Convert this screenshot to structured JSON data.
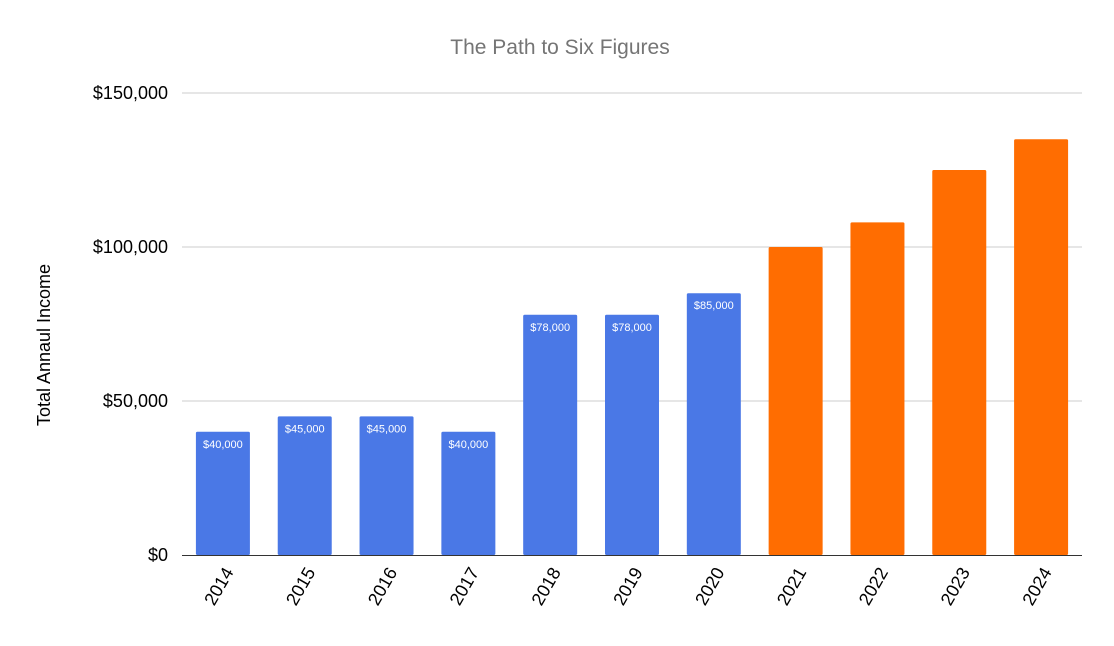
{
  "chart_data": {
    "type": "bar",
    "title": "The Path to Six Figures",
    "xlabel": "",
    "ylabel": "Total Annaul Income",
    "ylim": [
      0,
      150000
    ],
    "yticks": [
      {
        "value": 0,
        "label": "$0"
      },
      {
        "value": 50000,
        "label": "$50,000"
      },
      {
        "value": 100000,
        "label": "$100,000"
      },
      {
        "value": 150000,
        "label": "$150,000"
      }
    ],
    "grid": true,
    "legend": "none",
    "categories": [
      "2014",
      "2015",
      "2016",
      "2017",
      "2018",
      "2019",
      "2020",
      "2021",
      "2022",
      "2023",
      "2024"
    ],
    "values": [
      40000,
      45000,
      45000,
      40000,
      78000,
      78000,
      85000,
      100000,
      108000,
      125000,
      135000
    ],
    "data_labels": [
      "$40,000",
      "$45,000",
      "$45,000",
      "$40,000",
      "$78,000",
      "$78,000",
      "$85,000",
      "",
      "",
      "",
      ""
    ],
    "colors": {
      "historical": "#4a78e6",
      "projected": "#ff6d01",
      "grid": "#cccccc",
      "axis": "#333333"
    },
    "bar_color_groups": [
      "historical",
      "historical",
      "historical",
      "historical",
      "historical",
      "historical",
      "historical",
      "projected",
      "projected",
      "projected",
      "projected"
    ]
  }
}
